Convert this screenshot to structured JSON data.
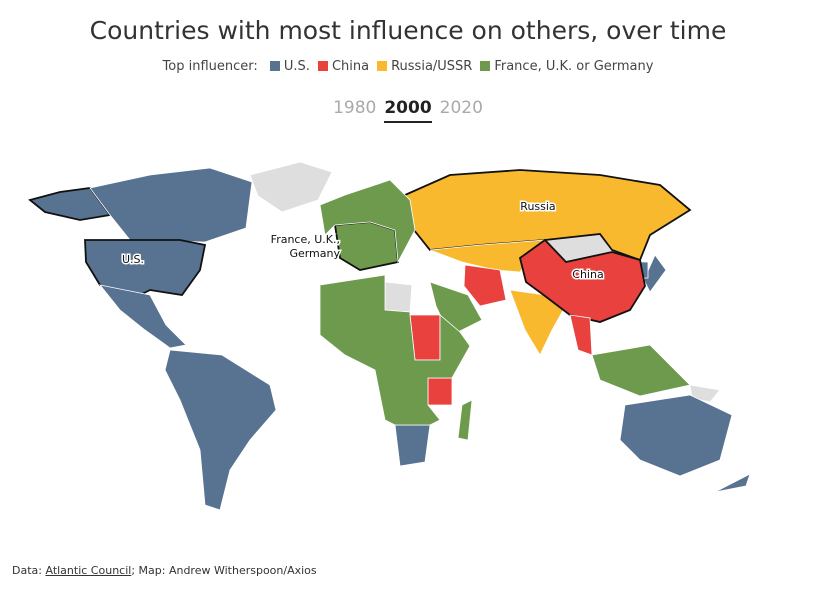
{
  "header": {
    "title": "Countries with most influence on others, over time"
  },
  "legend": {
    "label": "Top influencer:",
    "items": [
      {
        "name": "U.S.",
        "color": "#587391"
      },
      {
        "name": "China",
        "color": "#e8413e"
      },
      {
        "name": "Russia/USSR",
        "color": "#f9b92e"
      },
      {
        "name": "France, U.K. or Germany",
        "color": "#6e9a4e"
      }
    ]
  },
  "tabs": {
    "items": [
      "1980",
      "2000",
      "2020"
    ],
    "selected": "2000"
  },
  "map": {
    "labels": {
      "russia": "Russia",
      "china": "China",
      "us": "U.S.",
      "europe": [
        "France, U.K.,",
        "Germany"
      ]
    }
  },
  "footer": {
    "prefix": "Data:",
    "link": "Atlantic Council",
    "suffix": "; Map: Andrew Witherspoon/Axios"
  }
}
